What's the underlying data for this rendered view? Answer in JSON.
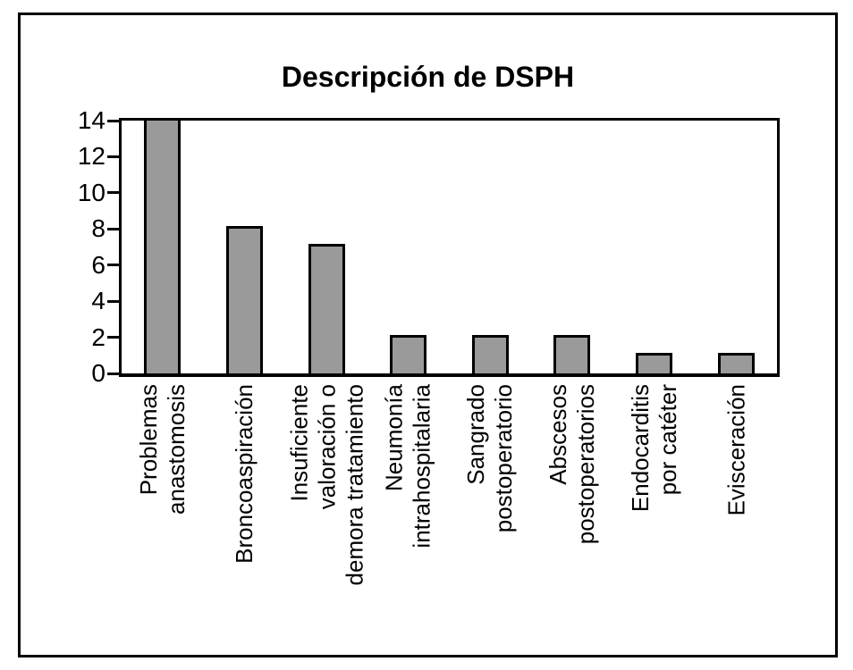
{
  "figure": {
    "background_color": "#ffffff",
    "frame_color": "#000000"
  },
  "chart_data": {
    "type": "bar",
    "title": "Descripción de DSPH",
    "categories": [
      "Problemas\nanastomosis",
      "Broncoaspiración",
      "Insuficiente\nvaloración o\ndemora tratamiento",
      "Neumonía\nintrahospitalaria",
      "Sangrado\npostoperatorio",
      "Abscesos\npostoperatorios",
      "Endocarditis\npor catéter",
      "Evisceración"
    ],
    "values": [
      14,
      8,
      7,
      2,
      2,
      2,
      1,
      1
    ],
    "xlabel": "",
    "ylabel": "",
    "ylim": [
      0,
      14
    ],
    "yticks": [
      0,
      2,
      4,
      6,
      8,
      10,
      12,
      14
    ],
    "grid": false,
    "legend": "none",
    "bar_color": "#9a9a9a",
    "bar_border_color": "#000000",
    "axis_color": "#000000",
    "text_color": "#000000"
  }
}
